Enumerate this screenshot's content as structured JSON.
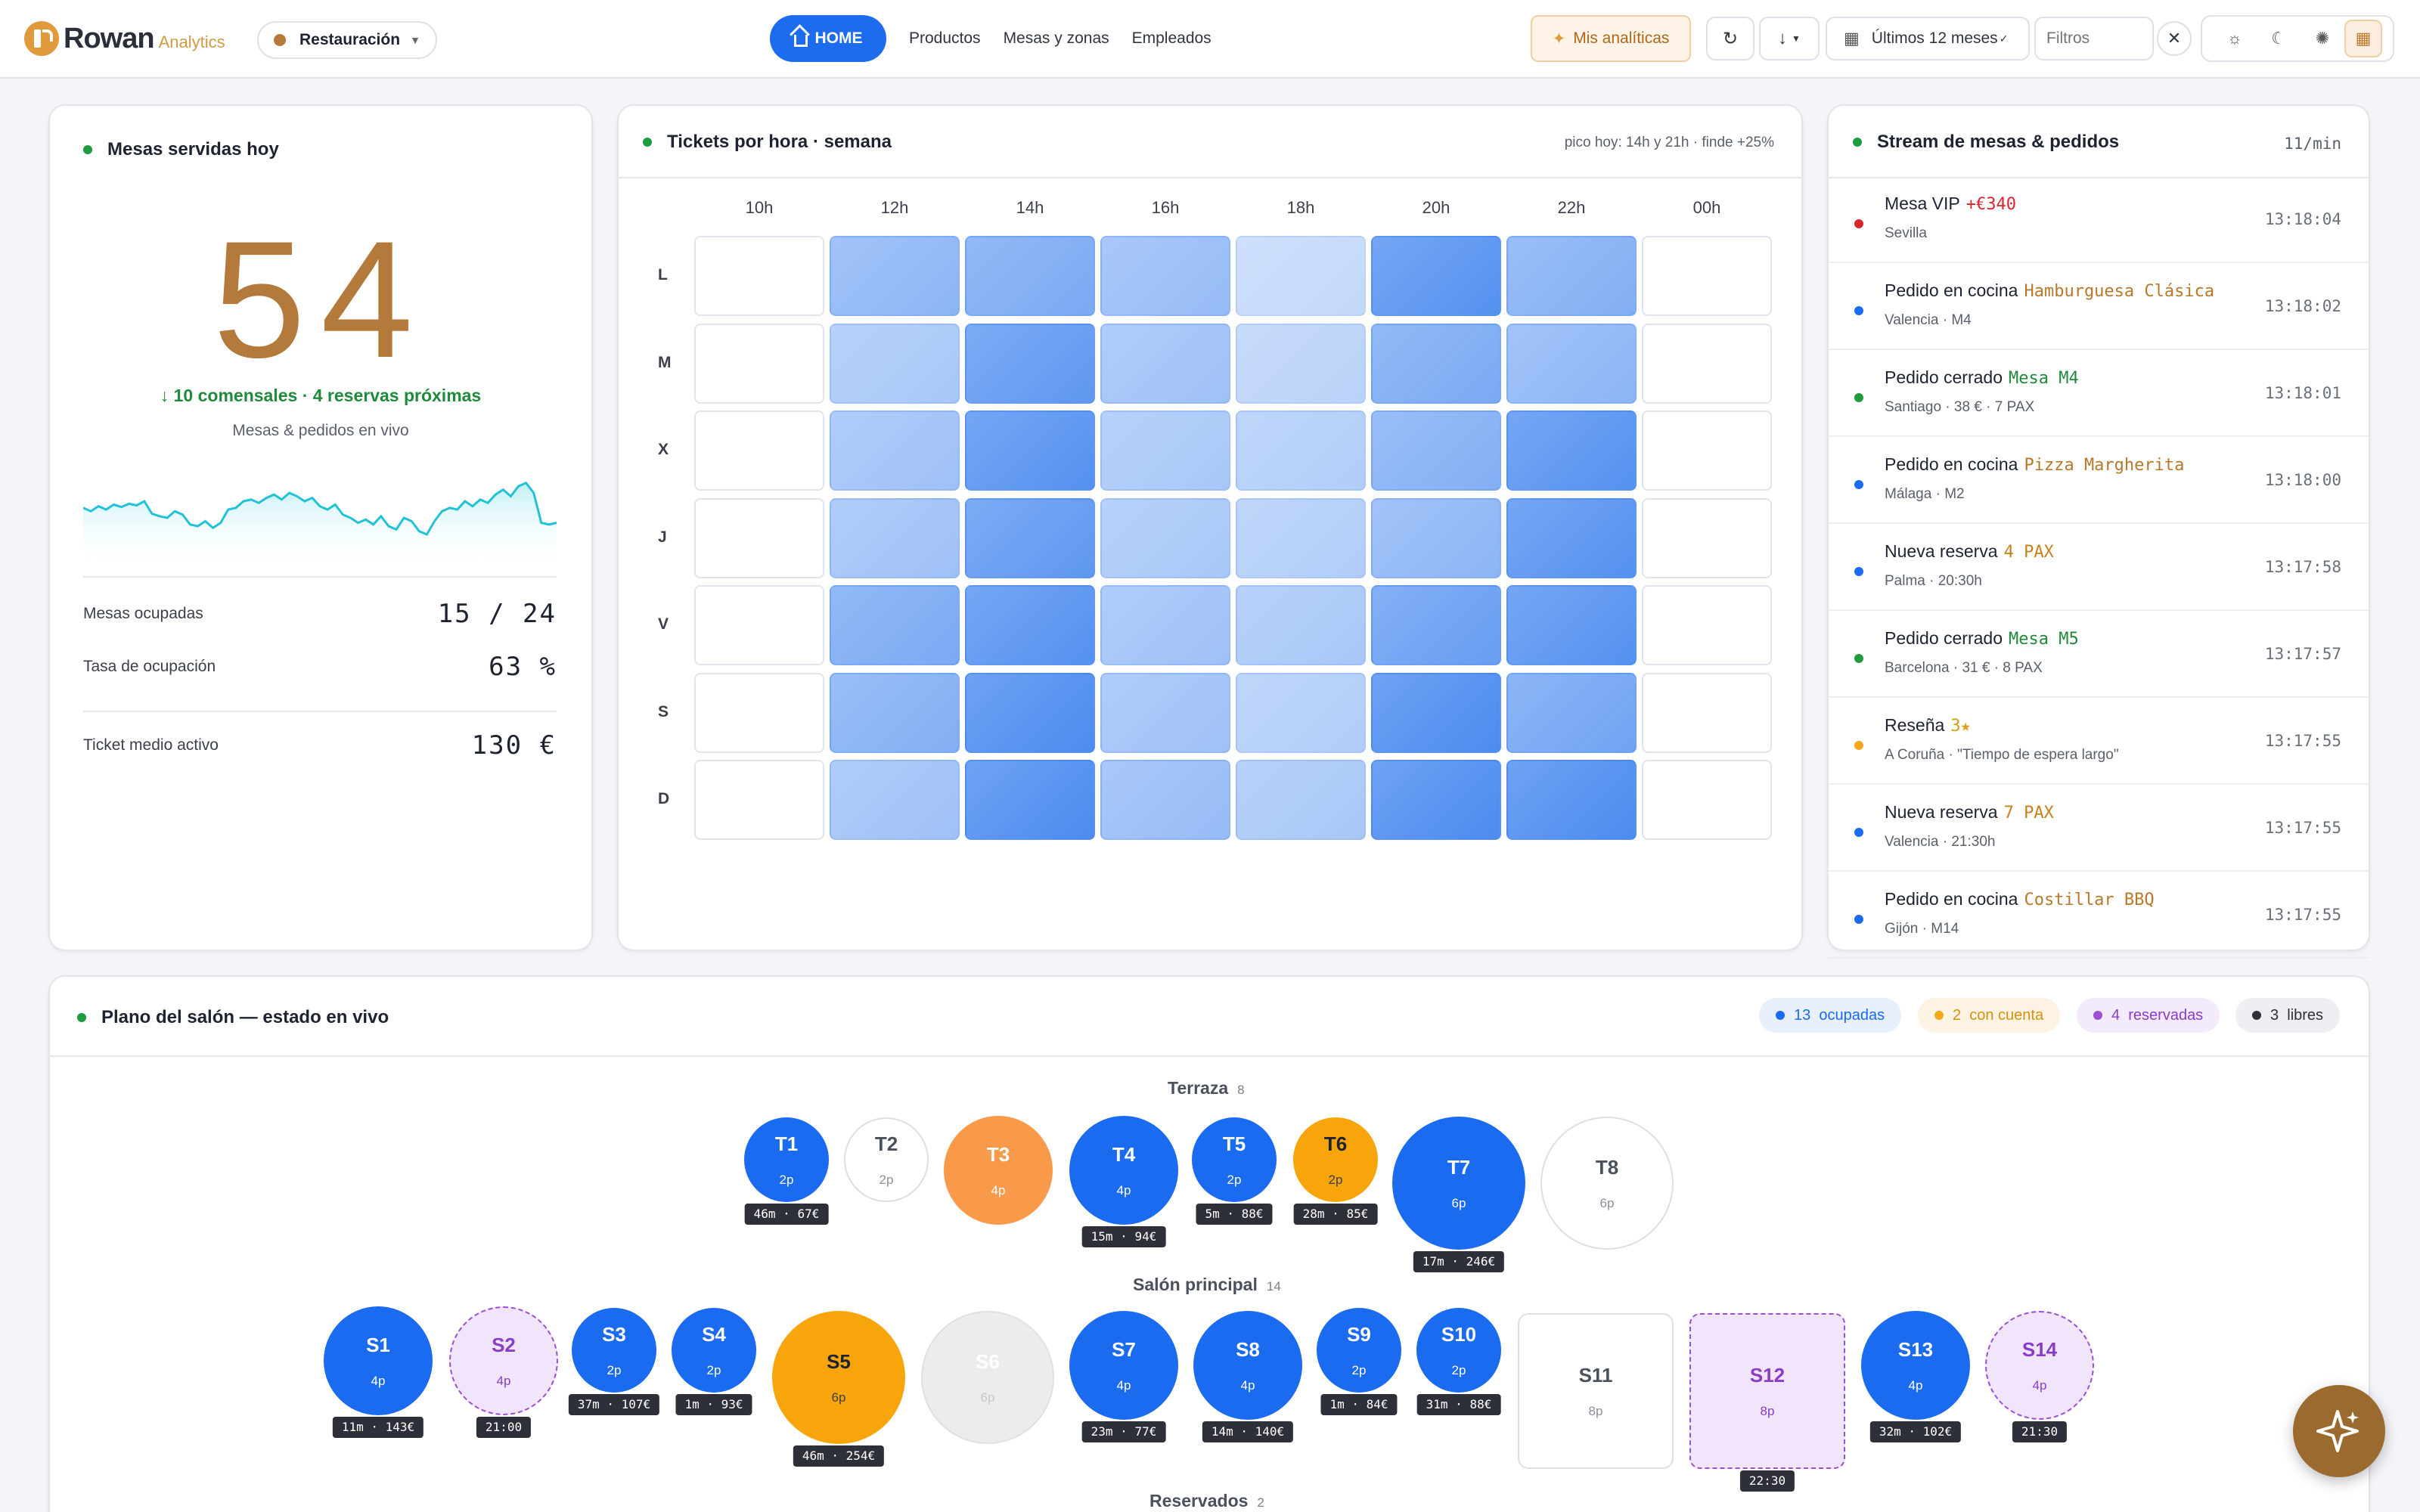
{
  "header": {
    "logo_text": "Rowan",
    "logo_sub": "Analytics",
    "segment": "Restauración",
    "nav": {
      "home": "HOME",
      "items": [
        "Productos",
        "Mesas y zonas",
        "Empleados"
      ]
    },
    "analytics_btn": "Mis analíticas",
    "period": "Últimos 12 meses",
    "filters_placeholder": "Filtros"
  },
  "served": {
    "title": "Mesas servidas hoy",
    "value": "54",
    "delta": "↓ 10 comensales · 4 reservas próximas",
    "subtitle": "Mesas & pedidos en vivo",
    "sparkline": [
      62,
      58,
      64,
      60,
      66,
      63,
      67,
      65,
      70,
      55,
      52,
      50,
      58,
      54,
      42,
      40,
      46,
      38,
      44,
      60,
      62,
      70,
      72,
      68,
      74,
      78,
      72,
      80,
      76,
      70,
      74,
      64,
      60,
      66,
      54,
      50,
      44,
      48,
      42,
      52,
      40,
      36,
      50,
      46,
      34,
      30,
      46,
      58,
      62,
      60,
      70,
      64,
      72,
      68,
      78,
      84,
      76,
      88,
      92,
      80,
      44,
      42,
      44
    ],
    "stats": [
      {
        "label": "Mesas ocupadas",
        "value": "15 / 24"
      },
      {
        "label": "Tasa de ocupación",
        "value": "63 %"
      },
      {
        "label": "Ticket medio activo",
        "value": "130 €"
      }
    ],
    "colors": {
      "value": "#b47a3c",
      "delta": "#1f8a3a",
      "spark": "#22c2d6"
    }
  },
  "heatmap": {
    "title": "Tickets por hora · semana",
    "note": "pico hoy: 14h y 21h · finde +25%",
    "hours": [
      "10h",
      "12h",
      "14h",
      "16h",
      "18h",
      "20h",
      "22h",
      "00h"
    ],
    "days": [
      "L",
      "M",
      "X",
      "J",
      "V",
      "S",
      "D"
    ],
    "values": [
      [
        0.0,
        0.45,
        0.55,
        0.4,
        0.15,
        0.75,
        0.5,
        0.0
      ],
      [
        0.0,
        0.3,
        0.7,
        0.35,
        0.2,
        0.55,
        0.45,
        0.0
      ],
      [
        0.0,
        0.35,
        0.75,
        0.3,
        0.25,
        0.5,
        0.75,
        0.0
      ],
      [
        0.0,
        0.35,
        0.7,
        0.3,
        0.25,
        0.45,
        0.75,
        0.0
      ],
      [
        0.0,
        0.55,
        0.75,
        0.35,
        0.3,
        0.65,
        0.75,
        0.0
      ],
      [
        0.0,
        0.5,
        0.8,
        0.35,
        0.25,
        0.8,
        0.6,
        0.0
      ],
      [
        0.0,
        0.35,
        0.8,
        0.4,
        0.3,
        0.8,
        0.8,
        0.0
      ]
    ]
  },
  "stream": {
    "title": "Stream de mesas & pedidos",
    "rate": "11/min",
    "items": [
      {
        "title": "Mesa VIP",
        "tag": "+€340",
        "tag_color": "#d8252e",
        "sub": "Sevilla",
        "time": "13:18:04",
        "dot": "#d8252e"
      },
      {
        "title": "Pedido en cocina",
        "tag": "Hamburguesa Clásica",
        "tag_color": "#b8782a",
        "sub": "Valencia · M4",
        "time": "13:18:02",
        "dot": "#1a6bef"
      },
      {
        "title": "Pedido cerrado",
        "tag": "Mesa M4",
        "tag_color": "#1f8a3a",
        "sub": "Santiago · 38 € · 7 PAX",
        "time": "13:18:01",
        "dot": "#1f9a3f"
      },
      {
        "title": "Pedido en cocina",
        "tag": "Pizza Margherita",
        "tag_color": "#b8782a",
        "sub": "Málaga · M2",
        "time": "13:18:00",
        "dot": "#1a6bef"
      },
      {
        "title": "Nueva reserva",
        "tag": "4 PAX",
        "tag_color": "#c8801a",
        "sub": "Palma · 20:30h",
        "time": "13:17:58",
        "dot": "#1a6bef"
      },
      {
        "title": "Pedido cerrado",
        "tag": "Mesa M5",
        "tag_color": "#1f8a3a",
        "sub": "Barcelona · 31 € · 8 PAX",
        "time": "13:17:57",
        "dot": "#1f9a3f"
      },
      {
        "title": "Reseña",
        "tag": "3★",
        "tag_color": "#d8a01a",
        "sub": "A Coruña · \"Tiempo de espera largo\"",
        "time": "13:17:55",
        "dot": "#f2a818"
      },
      {
        "title": "Nueva reserva",
        "tag": "7 PAX",
        "tag_color": "#c8801a",
        "sub": "Valencia · 21:30h",
        "time": "13:17:55",
        "dot": "#1a6bef"
      },
      {
        "title": "Pedido en cocina",
        "tag": "Costillar BBQ",
        "tag_color": "#b8782a",
        "sub": "Gijón · M14",
        "time": "13:17:55",
        "dot": "#1a6bef"
      }
    ]
  },
  "floor": {
    "title": "Plano del salón — estado en vivo",
    "legend": [
      {
        "count": "13",
        "label": "ocupadas",
        "bg": "#e8f0fd",
        "color": "#1a6bef"
      },
      {
        "count": "2",
        "label": "con cuenta",
        "bg": "#fdf3e2",
        "color": "#d89010"
      },
      {
        "count": "4",
        "label": "reservadas",
        "bg": "#f3eafb",
        "color": "#8a3cc8"
      },
      {
        "count": "3",
        "label": "libres",
        "bg": "#eeeff2",
        "color": "#2d3038"
      }
    ],
    "zones": [
      {
        "name": "Terraza",
        "count": "8"
      },
      {
        "name": "Salón principal",
        "count": "14"
      },
      {
        "name": "Reservados",
        "count": "2"
      }
    ],
    "terrace": [
      {
        "id": "T1",
        "pax": "2p",
        "state": "occ",
        "badge": "46m · 67€"
      },
      {
        "id": "T2",
        "pax": "2p",
        "state": "free",
        "badge": ""
      },
      {
        "id": "T3",
        "pax": "4p",
        "state": "orange",
        "badge": ""
      },
      {
        "id": "T4",
        "pax": "4p",
        "state": "occ",
        "badge": "15m · 94€"
      },
      {
        "id": "T5",
        "pax": "2p",
        "state": "occ",
        "badge": "5m · 88€"
      },
      {
        "id": "T6",
        "pax": "2p",
        "state": "acct",
        "badge": "28m · 85€"
      },
      {
        "id": "T7",
        "pax": "6p",
        "state": "occ",
        "badge": "17m · 246€"
      },
      {
        "id": "T8",
        "pax": "6p",
        "state": "free",
        "badge": ""
      }
    ],
    "salon": [
      {
        "id": "S1",
        "pax": "4p",
        "state": "occ",
        "badge": "11m · 143€"
      },
      {
        "id": "S2",
        "pax": "4p",
        "state": "resv",
        "badge": "21:00"
      },
      {
        "id": "S3",
        "pax": "2p",
        "state": "occ",
        "badge": "37m · 107€"
      },
      {
        "id": "S4",
        "pax": "2p",
        "state": "occ",
        "badge": "1m · 93€"
      },
      {
        "id": "S5",
        "pax": "6p",
        "state": "acct",
        "badge": "46m · 254€"
      },
      {
        "id": "S6",
        "pax": "6p",
        "state": "dis",
        "badge": ""
      },
      {
        "id": "S7",
        "pax": "4p",
        "state": "occ",
        "badge": "23m · 77€"
      },
      {
        "id": "S8",
        "pax": "4p",
        "state": "occ",
        "badge": "14m · 140€"
      },
      {
        "id": "S9",
        "pax": "2p",
        "state": "occ",
        "badge": "1m · 84€"
      },
      {
        "id": "S10",
        "pax": "2p",
        "state": "occ",
        "badge": "31m · 88€"
      },
      {
        "id": "S11",
        "pax": "8p",
        "state": "free",
        "badge": ""
      },
      {
        "id": "S12",
        "pax": "8p",
        "state": "resv",
        "badge": "22:30"
      },
      {
        "id": "S13",
        "pax": "4p",
        "state": "occ",
        "badge": "32m · 102€"
      },
      {
        "id": "S14",
        "pax": "4p",
        "state": "resv",
        "badge": "21:30"
      }
    ]
  }
}
